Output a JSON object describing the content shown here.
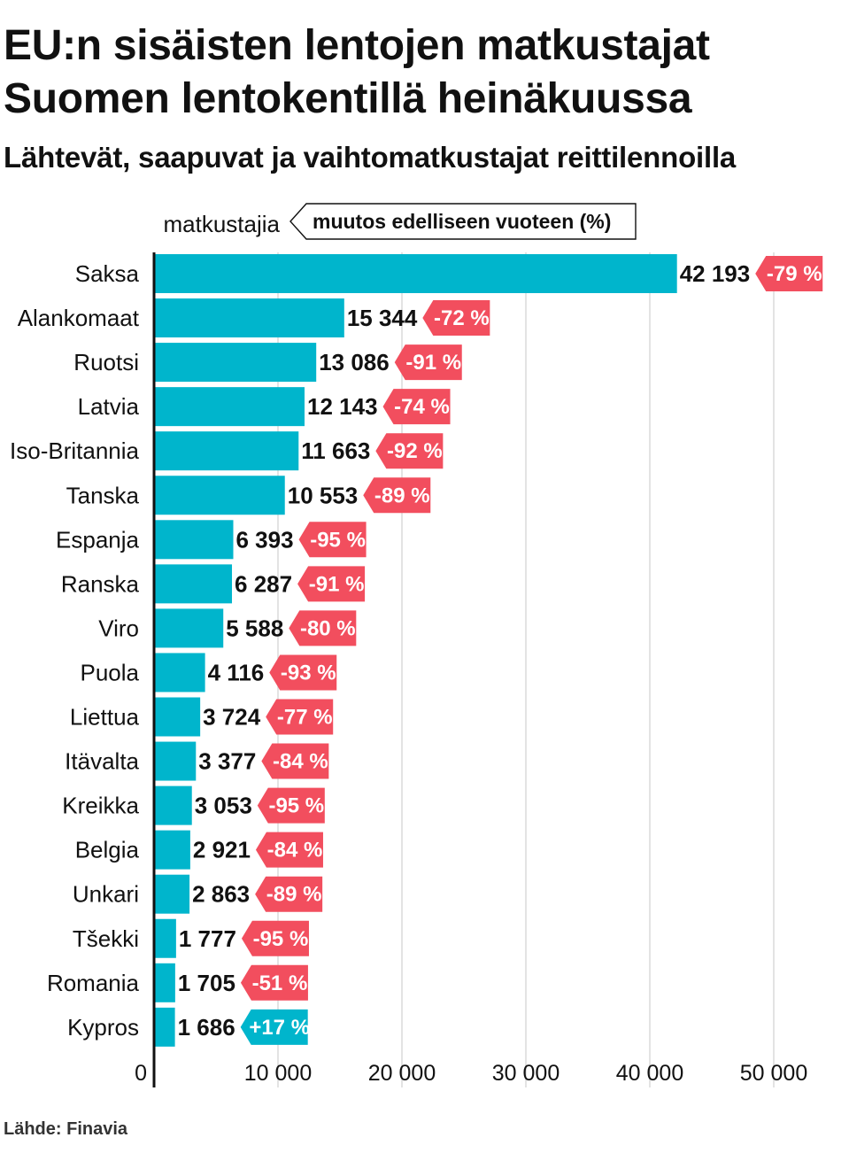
{
  "title": "EU:n sisäisten lentojen matkustajat Suomen lentokentillä heinäkuussa",
  "subtitle": "Lähtevät, saapuvat ja vaihtomatkustajat reittilennoilla",
  "source": "Lähde: Finavia",
  "colors": {
    "bar": "#00b5cc",
    "negative": "#f24e5e",
    "positive": "#00b5cc",
    "grid": "#d0d0d0",
    "axis": "#111111"
  },
  "chart_data": {
    "type": "bar",
    "orientation": "horizontal",
    "title": "EU:n sisäisten lentojen matkustajat Suomen lentokentillä heinäkuussa",
    "subtitle": "Lähtevät, saapuvat ja vaihtomatkustajat reittilennoilla",
    "xlabel": "matkustajia",
    "legend": "muutos edelliseen vuoteen (%)",
    "xlim": [
      0,
      50000
    ],
    "ticks": [
      0,
      10000,
      20000,
      30000,
      40000,
      50000
    ],
    "tick_labels": [
      "0",
      "10 000",
      "20 000",
      "30 000",
      "40 000",
      "50 000"
    ],
    "grid": true,
    "categories": [
      "Saksa",
      "Alankomaat",
      "Ruotsi",
      "Latvia",
      "Iso-Britannia",
      "Tanska",
      "Espanja",
      "Ranska",
      "Viro",
      "Puola",
      "Liettua",
      "Itävalta",
      "Kreikka",
      "Belgia",
      "Unkari",
      "Tšekki",
      "Romania",
      "Kypros"
    ],
    "values": [
      42193,
      15344,
      13086,
      12143,
      11663,
      10553,
      6393,
      6287,
      5588,
      4116,
      3724,
      3377,
      3053,
      2921,
      2863,
      1777,
      1705,
      1686
    ],
    "value_labels": [
      "42 193",
      "15 344",
      "13 086",
      "12 143",
      "11 663",
      "10 553",
      "6 393",
      "6 287",
      "5 588",
      "4 116",
      "3 724",
      "3 377",
      "3 053",
      "2 921",
      "2 863",
      "1 777",
      "1 705",
      "1 686"
    ],
    "change_pct": [
      -79,
      -72,
      -91,
      -74,
      -92,
      -89,
      -95,
      -91,
      -80,
      -93,
      -77,
      -84,
      -95,
      -84,
      -89,
      -95,
      -51,
      17
    ],
    "change_labels": [
      "-79 %",
      "-72 %",
      "-91 %",
      "-74 %",
      "-92 %",
      "-89 %",
      "-95 %",
      "-91 %",
      "-80 %",
      "-93 %",
      "-77 %",
      "-84 %",
      "-95 %",
      "-84 %",
      "-89 %",
      "-95 %",
      "-51 %",
      "+17 %"
    ]
  }
}
